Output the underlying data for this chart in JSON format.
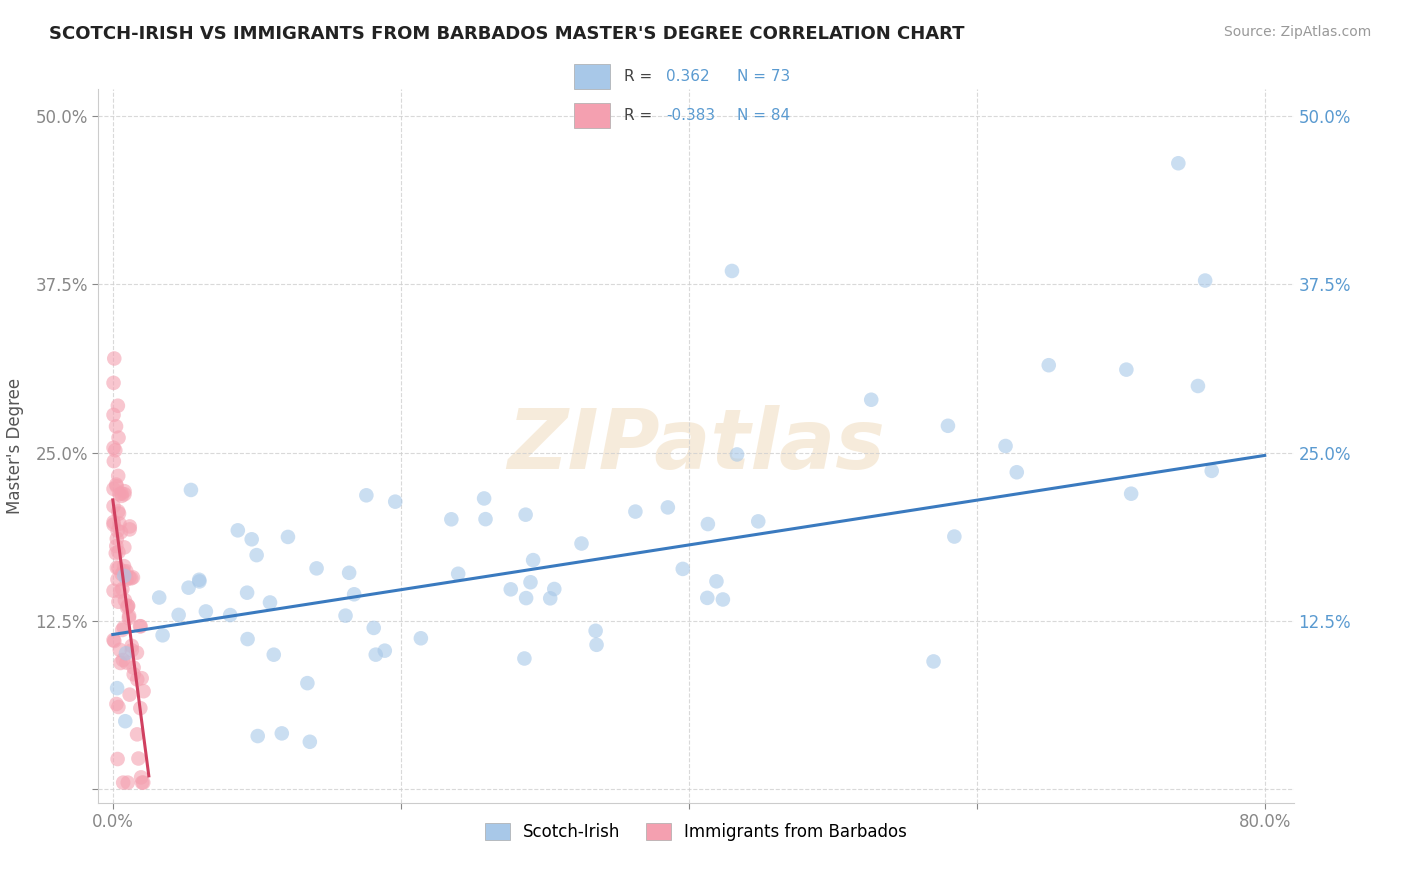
{
  "title": "SCOTCH-IRISH VS IMMIGRANTS FROM BARBADOS MASTER'S DEGREE CORRELATION CHART",
  "source": "Source: ZipAtlas.com",
  "ylabel": "Master's Degree",
  "watermark_text": "ZIPatlas",
  "r_scotch_irish": 0.362,
  "n_scotch_irish": 73,
  "r_barbados": -0.383,
  "n_barbados": 84,
  "xlim": [
    -0.01,
    0.82
  ],
  "ylim": [
    -0.01,
    0.52
  ],
  "color_scotch_irish": "#a8c8e8",
  "color_barbados": "#f4a0b0",
  "line_color_scotch_irish": "#3a7abf",
  "line_color_barbados": "#d04060",
  "tick_color": "#5a9ad0",
  "title_fontsize": 13,
  "source_fontsize": 10,
  "axis_label_fontsize": 12,
  "tick_fontsize": 12,
  "si_line_x0": 0.0,
  "si_line_y0": 0.115,
  "si_line_x1": 0.8,
  "si_line_y1": 0.248,
  "bb_line_x0": 0.0,
  "bb_line_y0": 0.215,
  "bb_line_x1": 0.025,
  "bb_line_y1": 0.01
}
